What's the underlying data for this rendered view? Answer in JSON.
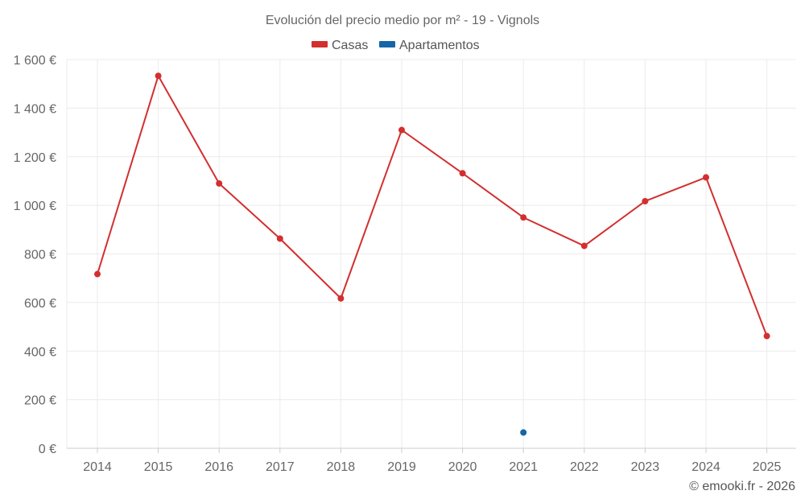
{
  "colors": {
    "casas": "#d32f2f",
    "apartamentos": "#1565a8",
    "grid": "#ebebeb",
    "axis": "#cccccc"
  },
  "chart_data": {
    "type": "line",
    "title": "Evolución del precio medio por m² - 19 - Vignols",
    "categories": [
      "2014",
      "2015",
      "2016",
      "2017",
      "2018",
      "2019",
      "2020",
      "2021",
      "2022",
      "2023",
      "2024",
      "2025"
    ],
    "series": [
      {
        "name": "Casas",
        "values": [
          717,
          1533,
          1090,
          863,
          617,
          1310,
          1132,
          950,
          833,
          1017,
          1115,
          462
        ]
      },
      {
        "name": "Apartamentos",
        "values": [
          null,
          null,
          null,
          null,
          null,
          null,
          null,
          65,
          null,
          null,
          null,
          null
        ]
      }
    ],
    "ylim": [
      0,
      1600
    ],
    "yticks": [
      0,
      200,
      400,
      600,
      800,
      1000,
      1200,
      1400,
      1600
    ],
    "ytick_labels": [
      "0 €",
      "200 €",
      "400 €",
      "600 €",
      "800 €",
      "1 000 €",
      "1 200 €",
      "1 400 €",
      "1 600 €"
    ],
    "xlabel": "",
    "ylabel": "",
    "grid": true,
    "legend_position": "top-center"
  },
  "footer": {
    "credit": "© emooki.fr - 2026"
  }
}
